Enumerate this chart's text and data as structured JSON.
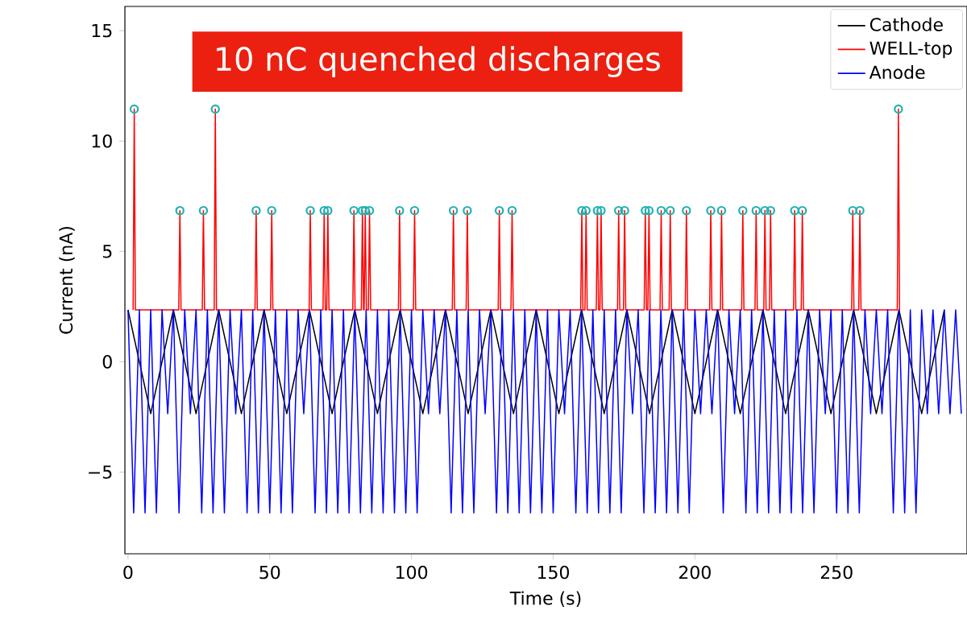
{
  "chart_data": {
    "type": "line",
    "title": "10 nC quenched discharges",
    "xlabel": "Time (s)",
    "ylabel": "Current (nA)",
    "xlim": [
      -1.1,
      296
    ],
    "ylim": [
      -8.7,
      16.1
    ],
    "xticks": [
      0,
      50,
      100,
      150,
      200,
      250
    ],
    "yticks": [
      {
        "value": -5,
        "label": "−5"
      },
      0,
      5,
      10,
      15
    ],
    "legend": "top right",
    "grid": false,
    "series": [
      {
        "name": "Cathode",
        "color": "#000000",
        "x": [
          0,
          8,
          16,
          24,
          32,
          40,
          48,
          56,
          64,
          72,
          80,
          88,
          96,
          104,
          112,
          120,
          128,
          136,
          144,
          152,
          160,
          168,
          176,
          184,
          192,
          200,
          208,
          216,
          224,
          232,
          240,
          248,
          256,
          264,
          272,
          280,
          288
        ],
        "values": [
          2.35,
          -2.35,
          2.35,
          -2.35,
          2.35,
          -2.35,
          2.35,
          -2.35,
          2.35,
          -2.35,
          2.35,
          -2.35,
          2.35,
          -2.35,
          2.35,
          -2.35,
          2.35,
          -2.35,
          2.35,
          -2.35,
          2.35,
          -2.35,
          2.35,
          -2.35,
          2.35,
          -2.35,
          2.35,
          -2.35,
          2.35,
          -2.35,
          2.35,
          -2.35,
          2.35,
          -2.35,
          2.35,
          -2.35,
          2.35
        ]
      },
      {
        "name": "WELL-top",
        "color": "#ff0000",
        "x": [
          1.8,
          2.2,
          2.6,
          17.9,
          18.3,
          18.7,
          26.2,
          26.6,
          27.0,
          30.4,
          30.8,
          31.2,
          44.8,
          45.2,
          45.6,
          50.3,
          50.7,
          51.1,
          63.9,
          64.3,
          64.7,
          68.8,
          69.2,
          69.6,
          70.1,
          70.5,
          70.9,
          79.3,
          79.7,
          80.1,
          82.3,
          82.7,
          83.1,
          83.3,
          83.7,
          84.1,
          84.8,
          85.2,
          85.6,
          95.4,
          95.8,
          96.2,
          100.7,
          101.1,
          101.5,
          114.4,
          114.8,
          115.2,
          119.3,
          119.7,
          120.1,
          130.6,
          131.0,
          131.4,
          135.1,
          135.5,
          135.9,
          159.7,
          160.1,
          160.5,
          161.2,
          161.6,
          162.0,
          165.2,
          165.6,
          166.0,
          166.5,
          166.9,
          167.3,
          172.7,
          173.1,
          173.5,
          174.8,
          175.2,
          175.6,
          182.1,
          182.5,
          182.9,
          183.4,
          183.8,
          184.2,
          187.7,
          188.1,
          188.5,
          190.9,
          191.3,
          191.7,
          196.6,
          197.0,
          197.4,
          205.2,
          205.6,
          206.0,
          209.0,
          209.4,
          209.8,
          216.5,
          216.9,
          217.3,
          221.2,
          221.6,
          222.0,
          224.3,
          224.7,
          225.1,
          226.3,
          226.7,
          227.1,
          234.8,
          235.2,
          235.6,
          237.5,
          237.9,
          238.3,
          255.3,
          255.7,
          256.1,
          257.8,
          258.2,
          258.6,
          271.4,
          271.8,
          272.2
        ],
        "values": [
          2.35,
          11.45,
          2.35,
          2.35,
          6.85,
          2.35,
          2.35,
          6.85,
          2.35,
          2.35,
          11.45,
          2.35,
          2.35,
          6.85,
          2.35,
          2.35,
          6.85,
          2.35,
          2.35,
          6.85,
          2.35,
          2.35,
          6.85,
          2.35,
          2.35,
          6.85,
          2.35,
          2.35,
          6.85,
          2.35,
          2.35,
          6.85,
          2.35,
          2.35,
          6.85,
          2.35,
          2.35,
          6.85,
          2.35,
          2.35,
          6.85,
          2.35,
          2.35,
          6.85,
          2.35,
          2.35,
          6.85,
          2.35,
          2.35,
          6.85,
          2.35,
          2.35,
          6.85,
          2.35,
          2.35,
          6.85,
          2.35,
          2.35,
          6.85,
          2.35,
          2.35,
          6.85,
          2.35,
          2.35,
          6.85,
          2.35,
          2.35,
          6.85,
          2.35,
          2.35,
          6.85,
          2.35,
          2.35,
          6.85,
          2.35,
          2.35,
          6.85,
          2.35,
          2.35,
          6.85,
          2.35,
          2.35,
          6.85,
          2.35,
          2.35,
          6.85,
          2.35,
          2.35,
          6.85,
          2.35,
          2.35,
          6.85,
          2.35,
          2.35,
          6.85,
          2.35,
          2.35,
          6.85,
          2.35,
          2.35,
          6.85,
          2.35,
          2.35,
          6.85,
          2.35,
          2.35,
          6.85,
          2.35,
          2.35,
          6.85,
          2.35,
          2.35,
          6.85,
          2.35,
          2.35,
          6.85,
          2.35,
          2.35,
          6.85,
          2.35,
          2.35,
          11.45,
          2.35
        ]
      },
      {
        "name": "Anode",
        "color": "#0000ff",
        "x": [
          0,
          2,
          4,
          6,
          8,
          10,
          12,
          14,
          16,
          18,
          20,
          22,
          24,
          26,
          28,
          30,
          32,
          34,
          36,
          38,
          40,
          42,
          44,
          46,
          48,
          50,
          52,
          54,
          56,
          58,
          60,
          62,
          64,
          66,
          68,
          70,
          72,
          74,
          76,
          78,
          80,
          82,
          84,
          86,
          88,
          90,
          92,
          94,
          96,
          98,
          100,
          102,
          104,
          106,
          108,
          110,
          112,
          114,
          116,
          118,
          120,
          122,
          124,
          126,
          128,
          130,
          132,
          134,
          136,
          138,
          140,
          142,
          144,
          146,
          148,
          150,
          152,
          154,
          156,
          158,
          160,
          162,
          164,
          166,
          168,
          170,
          172,
          174,
          176,
          178,
          180,
          182,
          184,
          186,
          188,
          190,
          192,
          194,
          196,
          198,
          200,
          202,
          204,
          206,
          208,
          210,
          212,
          214,
          216,
          218,
          220,
          222,
          224,
          226,
          228,
          230,
          232,
          234,
          236,
          238,
          240,
          242,
          244,
          246,
          248,
          250,
          252,
          254,
          256,
          258,
          260,
          262,
          264,
          266,
          268,
          270,
          272,
          274,
          276,
          278,
          280,
          282,
          284,
          286,
          288,
          290,
          292,
          294
        ],
        "values": [
          2.35,
          -6.85,
          2.35,
          -6.85,
          2.35,
          -6.85,
          2.35,
          -2.35,
          2.35,
          -6.85,
          2.35,
          -2.35,
          2.35,
          -6.85,
          2.35,
          -6.85,
          2.35,
          -6.85,
          2.35,
          -2.35,
          2.35,
          -6.85,
          2.35,
          -6.85,
          2.35,
          -6.85,
          2.35,
          -6.85,
          2.35,
          -6.85,
          2.35,
          -2.35,
          2.35,
          -6.85,
          2.35,
          -6.85,
          2.35,
          -6.85,
          2.35,
          -6.85,
          2.35,
          -6.85,
          2.35,
          -6.85,
          2.35,
          -6.85,
          2.35,
          -6.85,
          2.35,
          -6.85,
          2.35,
          -6.85,
          2.35,
          -2.35,
          2.35,
          -2.35,
          2.35,
          -6.85,
          2.35,
          -6.85,
          2.35,
          -6.85,
          2.35,
          -2.35,
          2.35,
          -6.85,
          2.35,
          -6.85,
          2.35,
          -6.85,
          2.35,
          -6.85,
          2.35,
          -6.85,
          2.35,
          -6.85,
          2.35,
          -2.35,
          2.35,
          -6.85,
          2.35,
          -6.85,
          2.35,
          -6.85,
          2.35,
          -6.85,
          2.35,
          -6.85,
          2.35,
          -2.35,
          2.35,
          -6.85,
          2.35,
          -6.85,
          2.35,
          -6.85,
          2.35,
          -6.85,
          2.35,
          -6.85,
          2.35,
          -2.35,
          2.35,
          -2.35,
          2.35,
          -6.85,
          2.35,
          -2.35,
          2.35,
          -6.85,
          2.35,
          -6.85,
          2.35,
          -6.85,
          2.35,
          -6.85,
          2.35,
          -6.85,
          2.35,
          -6.85,
          2.35,
          -6.85,
          2.35,
          -2.35,
          2.35,
          -6.85,
          2.35,
          -6.85,
          2.35,
          -6.85,
          2.35,
          -2.35,
          2.35,
          -2.35,
          2.35,
          -6.85,
          2.35,
          -6.85,
          2.35,
          -6.85,
          2.35,
          -2.35,
          2.35,
          -2.35,
          2.35,
          -2.35,
          2.35,
          -2.35
        ]
      },
      {
        "type": "scatter",
        "marker": "circle",
        "color": "#20b2b2",
        "x": [
          2.2,
          18.3,
          26.6,
          30.8,
          45.2,
          50.7,
          64.3,
          69.2,
          70.5,
          79.7,
          82.7,
          83.7,
          85.2,
          95.8,
          101.1,
          114.8,
          119.7,
          131.0,
          135.5,
          160.1,
          161.6,
          165.6,
          166.9,
          173.1,
          175.2,
          182.5,
          183.8,
          188.1,
          191.3,
          197.0,
          205.6,
          209.4,
          216.9,
          221.6,
          224.7,
          226.7,
          235.2,
          237.9,
          255.7,
          258.2,
          271.8
        ],
        "values": [
          11.45,
          6.85,
          6.85,
          11.45,
          6.85,
          6.85,
          6.85,
          6.85,
          6.85,
          6.85,
          6.85,
          6.85,
          6.85,
          6.85,
          6.85,
          6.85,
          6.85,
          6.85,
          6.85,
          6.85,
          6.85,
          6.85,
          6.85,
          6.85,
          6.85,
          6.85,
          6.85,
          6.85,
          6.85,
          6.85,
          6.85,
          6.85,
          6.85,
          6.85,
          6.85,
          6.85,
          6.85,
          6.85,
          6.85,
          6.85,
          11.45
        ]
      }
    ]
  }
}
